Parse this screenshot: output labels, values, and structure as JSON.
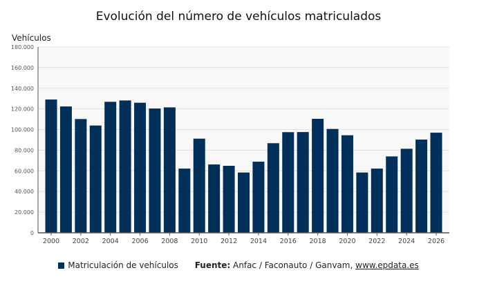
{
  "chart_data": {
    "type": "bar",
    "title": "Evolución del número de vehículos matriculados",
    "ylabel": "Vehículos",
    "xlabel": "",
    "ylim": [
      0,
      180000
    ],
    "yticks": [
      0,
      20000,
      40000,
      60000,
      80000,
      100000,
      120000,
      140000,
      160000,
      180000
    ],
    "ytick_labels": [
      "0",
      "20.000",
      "40.000",
      "60.000",
      "80.000",
      "100.000",
      "120.000",
      "140.000",
      "160.000",
      "180.000"
    ],
    "categories": [
      2000,
      2001,
      2002,
      2003,
      2004,
      2005,
      2006,
      2007,
      2008,
      2009,
      2010,
      2011,
      2012,
      2013,
      2014,
      2015,
      2016,
      2017,
      2018,
      2019,
      2020,
      2021,
      2022,
      2023,
      2024,
      2025,
      2026
    ],
    "xtick_labels": [
      "2000",
      "2002",
      "2004",
      "2006",
      "2008",
      "2010",
      "2012",
      "2014",
      "2016",
      "2018",
      "2020",
      "2022",
      "2024",
      "2026"
    ],
    "series": [
      {
        "name": "Matriculación de vehículos",
        "color": "#00305a",
        "values": [
          129100,
          122400,
          110200,
          103900,
          126900,
          128200,
          126000,
          120400,
          121500,
          62200,
          91200,
          66200,
          64900,
          58400,
          68900,
          86800,
          97500,
          97600,
          110400,
          100600,
          94500,
          58400,
          62200,
          74000,
          81400,
          90300,
          97000
        ]
      }
    ],
    "grid": true,
    "legend_position": "bottom"
  },
  "source": {
    "label": "Fuente:",
    "text": "Anfac / Faconauto / Ganvam,",
    "link": "www.epdata.es"
  }
}
